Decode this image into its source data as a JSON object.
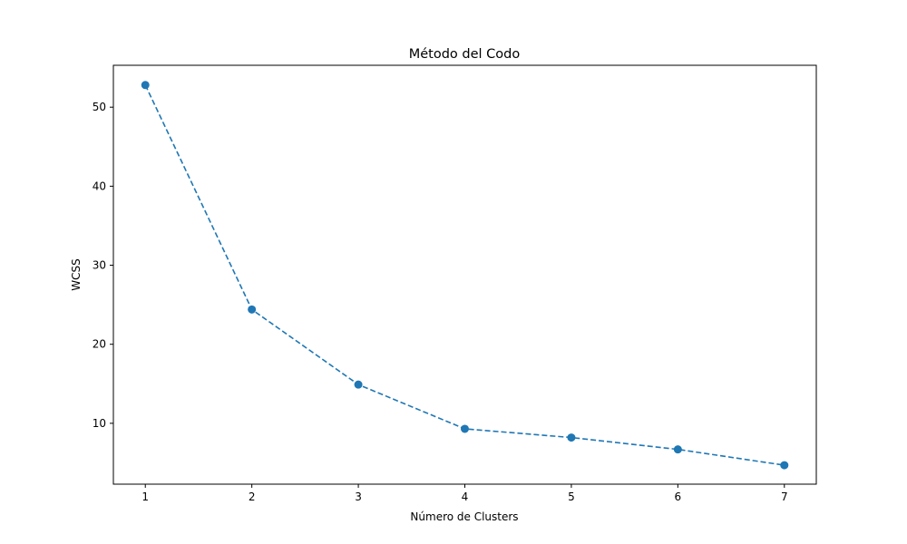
{
  "chart_data": {
    "type": "line",
    "title": "Método del Codo",
    "xlabel": "Número de Clusters",
    "ylabel": "WCSS",
    "x": [
      1,
      2,
      3,
      4,
      5,
      6,
      7
    ],
    "series": [
      {
        "values": [
          52.8,
          24.4,
          14.9,
          9.3,
          8.2,
          6.7,
          4.7
        ],
        "color": "#1f77b4",
        "line_style": "dashed",
        "marker": "circle"
      }
    ],
    "xlim": [
      0.7,
      7.3
    ],
    "ylim": [
      2.3,
      55.3
    ],
    "xticks": [
      1,
      2,
      3,
      4,
      5,
      6,
      7
    ],
    "yticks": [
      10,
      20,
      30,
      40,
      50
    ],
    "grid": false,
    "legend": "none"
  }
}
